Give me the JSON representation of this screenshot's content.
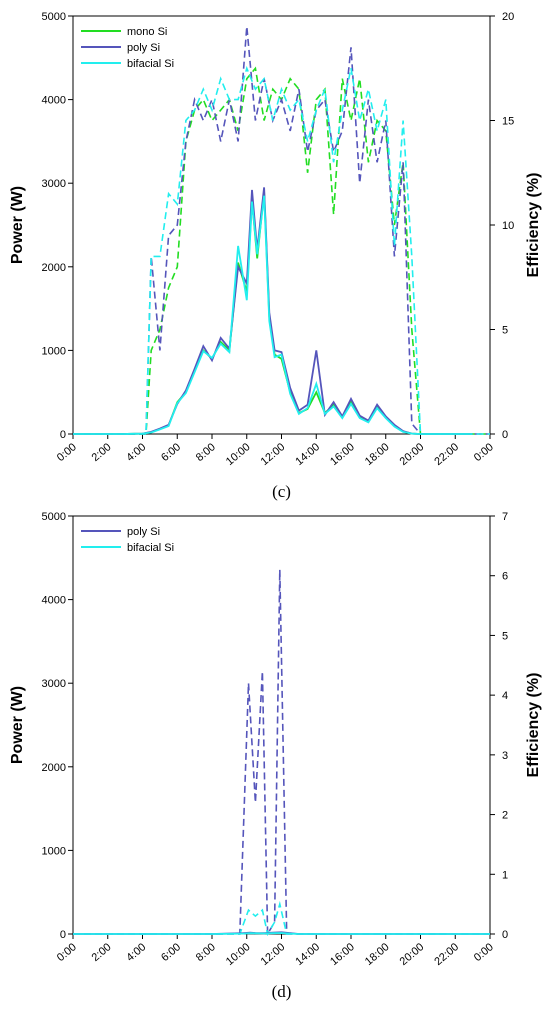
{
  "chart_data": [
    {
      "type": "line",
      "panel_label": "(c)",
      "ylabel": "Power (W)",
      "y2label": "Efficiency (%)",
      "ylim": [
        0,
        5000
      ],
      "y2lim": [
        0,
        20
      ],
      "yticks": [
        "0",
        "1000",
        "2000",
        "3000",
        "4000",
        "5000"
      ],
      "y2ticks": [
        "0",
        "5",
        "10",
        "15",
        "20"
      ],
      "xlim": [
        0,
        24
      ],
      "xticks": [
        "0:00",
        "2:00",
        "4:00",
        "6:00",
        "8:00",
        "10:00",
        "12:00",
        "14:00",
        "16:00",
        "18:00",
        "20:00",
        "22:00",
        "0:00"
      ],
      "x": [
        0,
        3,
        4,
        4.5,
        5,
        5.5,
        6,
        6.5,
        7,
        7.5,
        8,
        8.5,
        9,
        9.5,
        10,
        10.3,
        10.6,
        11,
        11.3,
        11.6,
        12,
        12.5,
        13,
        13.5,
        14,
        14.5,
        15,
        15.5,
        16,
        16.5,
        17,
        17.5,
        18,
        18.5,
        19,
        19.5,
        20,
        21,
        23
      ],
      "legend": [
        "mono Si",
        "poly Si",
        "bifacial Si"
      ],
      "colors": {
        "mono Si": "#22dd22",
        "poly Si": "#5555bb",
        "bifacial Si": "#22eeee"
      },
      "power_series": [
        {
          "name": "mono Si",
          "values": [
            0,
            0,
            5,
            20,
            60,
            100,
            380,
            500,
            750,
            1000,
            900,
            1100,
            1000,
            2050,
            1700,
            2800,
            2100,
            2900,
            1400,
            950,
            900,
            500,
            250,
            300,
            500,
            250,
            350,
            200,
            380,
            200,
            150,
            320,
            200,
            100,
            30,
            5,
            0,
            0,
            0
          ]
        },
        {
          "name": "poly Si",
          "values": [
            0,
            0,
            5,
            25,
            65,
            110,
            360,
            520,
            780,
            1050,
            880,
            1150,
            1020,
            2000,
            1800,
            2920,
            2200,
            2950,
            1450,
            1000,
            980,
            550,
            280,
            350,
            1000,
            230,
            380,
            210,
            420,
            220,
            160,
            350,
            210,
            110,
            35,
            5,
            0,
            0,
            0
          ]
        },
        {
          "name": "bifacial Si",
          "values": [
            0,
            0,
            5,
            18,
            55,
            95,
            370,
            490,
            740,
            990,
            910,
            1080,
            980,
            2250,
            1600,
            2780,
            2150,
            2850,
            1350,
            920,
            950,
            480,
            240,
            310,
            600,
            240,
            330,
            190,
            360,
            190,
            140,
            310,
            190,
            90,
            25,
            5,
            0,
            0,
            0
          ]
        }
      ],
      "efficiency_series": [
        {
          "name": "mono Si",
          "x": [
            0,
            4.2,
            4.5,
            5,
            5.5,
            6,
            6.5,
            7,
            7.5,
            8,
            8.5,
            9,
            9.5,
            10,
            10.5,
            11,
            11.5,
            12,
            12.5,
            13,
            13.5,
            14,
            14.5,
            15,
            15.5,
            16,
            16.5,
            17,
            17.5,
            18,
            18.5,
            19,
            19.5,
            20,
            24
          ],
          "values": [
            0,
            0,
            4,
            5,
            7,
            8,
            14,
            15.5,
            16,
            15,
            15.5,
            16,
            14.5,
            17,
            17.5,
            15,
            16.5,
            16,
            17,
            16.5,
            12.5,
            16,
            16.5,
            10.5,
            17,
            15,
            17,
            13,
            15,
            14.5,
            10,
            13,
            5,
            0,
            0
          ]
        },
        {
          "name": "poly Si",
          "x": [
            0,
            4.2,
            4.5,
            5,
            5.5,
            6,
            6.5,
            7,
            7.5,
            8,
            8.5,
            9,
            9.5,
            10,
            10.5,
            11,
            11.5,
            12,
            12.5,
            13,
            13.5,
            14,
            14.5,
            15,
            15.5,
            16,
            16.5,
            17,
            17.5,
            18,
            18.5,
            19,
            19.5,
            20,
            24
          ],
          "values": [
            0,
            0,
            8.5,
            4,
            9.5,
            10,
            14,
            16,
            15,
            16,
            14,
            16,
            14,
            19.5,
            15,
            17,
            15,
            16,
            14.5,
            16.5,
            13.5,
            15.5,
            16,
            13.5,
            14.5,
            18.5,
            12,
            16,
            13,
            15,
            8.5,
            13,
            0.5,
            0,
            0
          ]
        },
        {
          "name": "bifacial Si",
          "x": [
            0,
            4.2,
            4.5,
            5,
            5.5,
            6,
            6.5,
            7,
            7.5,
            8,
            8.5,
            9,
            9.5,
            10,
            10.5,
            11,
            11.5,
            12,
            12.5,
            13,
            13.5,
            14,
            14.5,
            15,
            15.5,
            16,
            16.5,
            17,
            17.5,
            18,
            18.5,
            19,
            19.5,
            20,
            24
          ],
          "values": [
            0,
            0,
            8.5,
            8.5,
            11.5,
            11,
            15,
            15.5,
            16.5,
            15.5,
            17,
            16,
            16,
            17.5,
            16.5,
            17,
            15,
            16.5,
            15.5,
            16,
            14,
            15.5,
            16.5,
            13,
            15.5,
            17.5,
            15,
            16.5,
            14.5,
            16,
            9,
            15,
            8.5,
            0,
            0
          ]
        }
      ]
    },
    {
      "type": "line",
      "panel_label": "(d)",
      "ylabel": "Power (W)",
      "y2label": "Efficiency (%)",
      "ylim": [
        0,
        5000
      ],
      "y2lim": [
        0,
        7
      ],
      "yticks": [
        "0",
        "1000",
        "2000",
        "3000",
        "4000",
        "5000"
      ],
      "y2ticks": [
        "0",
        "1",
        "2",
        "3",
        "4",
        "5",
        "6",
        "7"
      ],
      "xlim": [
        0,
        24
      ],
      "xticks": [
        "0:00",
        "2:00",
        "4:00",
        "6:00",
        "8:00",
        "10:00",
        "12:00",
        "14:00",
        "16:00",
        "18:00",
        "20:00",
        "22:00",
        "0:00"
      ],
      "x": [
        0,
        8,
        9.8,
        10.2,
        10.5,
        11,
        11.5,
        12,
        12.5,
        13,
        24
      ],
      "legend": [
        "poly Si",
        "bifacial Si"
      ],
      "colors": {
        "poly Si": "#5555bb",
        "bifacial Si": "#22eeee"
      },
      "power_series": [
        {
          "name": "poly Si",
          "values": [
            0,
            0,
            10,
            15,
            12,
            10,
            15,
            20,
            10,
            0,
            0
          ]
        },
        {
          "name": "bifacial Si",
          "values": [
            0,
            0,
            5,
            10,
            8,
            6,
            10,
            12,
            5,
            0,
            0
          ]
        }
      ],
      "efficiency_series": [
        {
          "name": "poly Si",
          "x": [
            0,
            9.6,
            10.1,
            10.5,
            10.9,
            11.2,
            11.6,
            11.9,
            12.3,
            12.6,
            24
          ],
          "values": [
            0,
            0,
            4.2,
            2.2,
            4.4,
            0,
            0.2,
            6.1,
            0,
            0,
            0
          ]
        },
        {
          "name": "bifacial Si",
          "x": [
            0,
            9.6,
            10.1,
            10.5,
            10.9,
            11.2,
            11.6,
            11.9,
            12.3,
            12.6,
            24
          ],
          "values": [
            0,
            0,
            0.4,
            0.3,
            0.4,
            0,
            0.2,
            0.5,
            0,
            0,
            0
          ]
        }
      ]
    }
  ]
}
